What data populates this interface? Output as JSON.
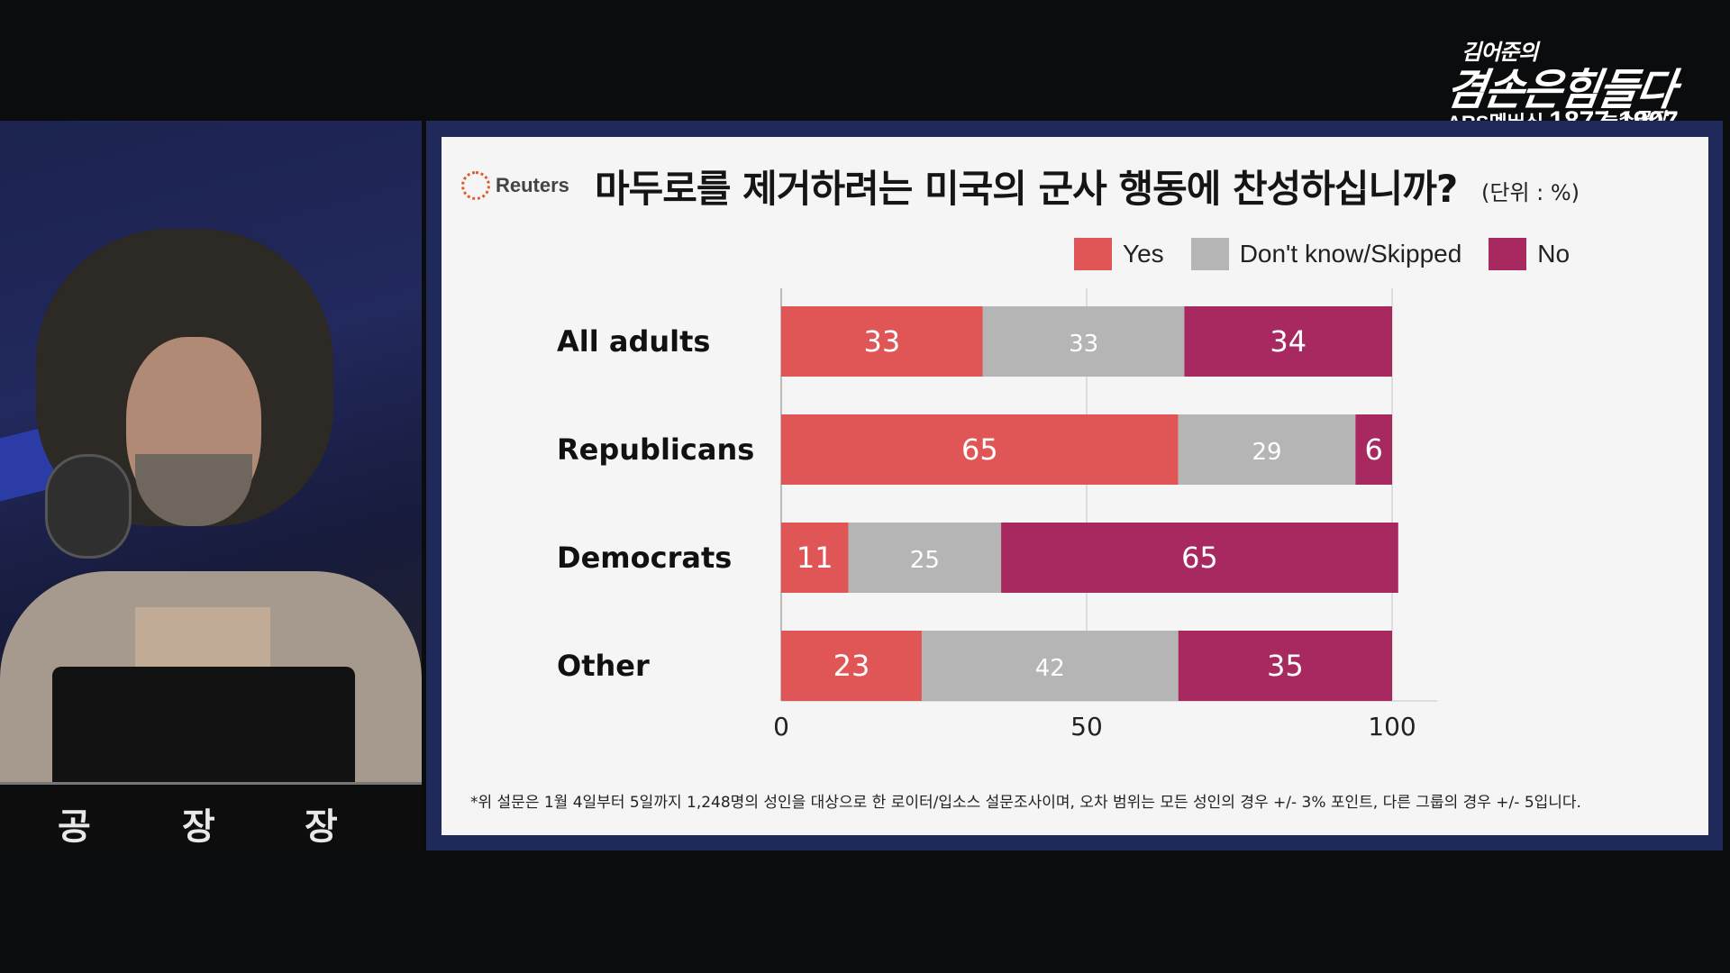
{
  "logo": {
    "line1": "김어준의",
    "line2": "겸손은힘들다",
    "line3": "뉴스공장",
    "ars_label": "ARS멤버십",
    "phone": "1877-1907"
  },
  "desk_sign": [
    "공",
    "장",
    "장"
  ],
  "slide": {
    "brand": "Reuters",
    "title": "마두로를 제거하려는 미국의 군사 행동에 찬성하십니까?",
    "unit": "(단위 : %)",
    "footnote": "*위 설문은 1월 4일부터 5일까지 1,248명의 성인을 대상으로 한 로이터/입소스 설문조사이며, 오차 범위는 모든 성인의 경우 +/- 3% 포인트, 다른 그룹의 경우 +/- 5입니다."
  },
  "chart_data": {
    "type": "bar",
    "orientation": "horizontal",
    "stacked": true,
    "categories": [
      "All adults",
      "Republicans",
      "Democrats",
      "Other"
    ],
    "series": [
      {
        "name": "Yes",
        "color": "#e05555",
        "values": [
          33,
          65,
          11,
          23
        ]
      },
      {
        "name": "Don't know/Skipped",
        "color": "#b5b5b5",
        "values": [
          33,
          29,
          25,
          42
        ]
      },
      {
        "name": "No",
        "color": "#a8295f",
        "values": [
          34,
          6,
          65,
          35
        ]
      }
    ],
    "xlim": [
      0,
      100
    ],
    "xticks": [
      0,
      50,
      100
    ],
    "grid": true,
    "legend": "top-right"
  }
}
